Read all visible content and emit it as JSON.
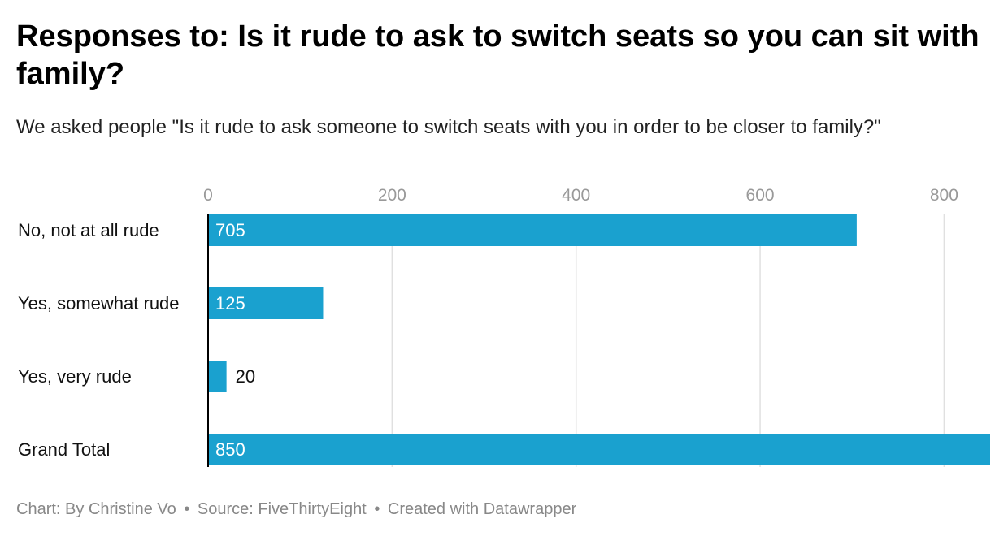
{
  "title": "Responses to: Is it rude to ask to switch seats so you can sit with family?",
  "subtitle": "We asked people \"Is it rude to ask someone to switch seats with you in order to be closer to family?\"",
  "footer": {
    "byline": "Chart: By Christine Vo",
    "source": "Source: FiveThirtyEight",
    "credit": "Created with Datawrapper",
    "separator": "•"
  },
  "colors": {
    "bar": "#1aa1cf",
    "grid": "#e0e0e0",
    "axis": "#000000",
    "tick_label": "#999999"
  },
  "chart_data": {
    "type": "bar",
    "orientation": "horizontal",
    "categories": [
      "No, not at all rude",
      "Yes, somewhat rude",
      "Yes, very rude",
      "Grand Total"
    ],
    "values": [
      705,
      125,
      20,
      850
    ],
    "xlim": [
      0,
      850
    ],
    "xticks": [
      0,
      200,
      400,
      600,
      800
    ],
    "grid": true,
    "data_labels": true
  }
}
